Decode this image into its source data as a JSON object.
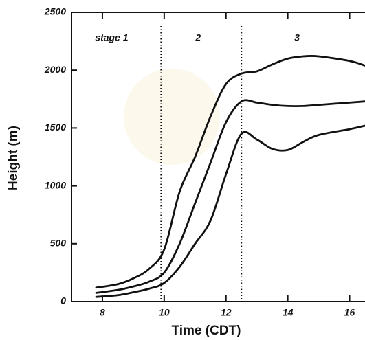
{
  "chart_data": {
    "type": "line",
    "x_label": "Time (CDT)",
    "y_label": "Height (m)",
    "x": [
      7.8,
      8.5,
      9,
      9.5,
      10,
      10.5,
      11,
      11.5,
      12,
      12.5,
      13,
      13.5,
      14,
      14.5,
      15,
      16,
      16.5
    ],
    "series": [
      {
        "color": "#111111",
        "values": [
          120,
          150,
          200,
          280,
          450,
          950,
          1250,
          1600,
          1880,
          1970,
          1990,
          2050,
          2100,
          2120,
          2120,
          2080,
          2040
        ]
      },
      {
        "color": "#111111",
        "values": [
          75,
          100,
          130,
          170,
          250,
          500,
          850,
          1200,
          1550,
          1730,
          1720,
          1700,
          1690,
          1690,
          1700,
          1720,
          1730
        ]
      },
      {
        "color": "#111111",
        "values": [
          40,
          55,
          80,
          110,
          160,
          300,
          500,
          700,
          1100,
          1450,
          1400,
          1320,
          1310,
          1380,
          1440,
          1490,
          1520
        ]
      }
    ],
    "xlim": [
      7,
      16.5
    ],
    "ylim": [
      0,
      2500
    ],
    "xticks": [
      8,
      10,
      12,
      14,
      16
    ],
    "yticks": [
      0,
      500,
      1000,
      1500,
      2000,
      2500
    ],
    "vlines": [
      9.9,
      12.5
    ],
    "annotations": [
      {
        "text": "stage 1",
        "x": 8.3
      },
      {
        "text": "2",
        "x": 11.1
      },
      {
        "text": "3",
        "x": 14.3
      }
    ]
  }
}
